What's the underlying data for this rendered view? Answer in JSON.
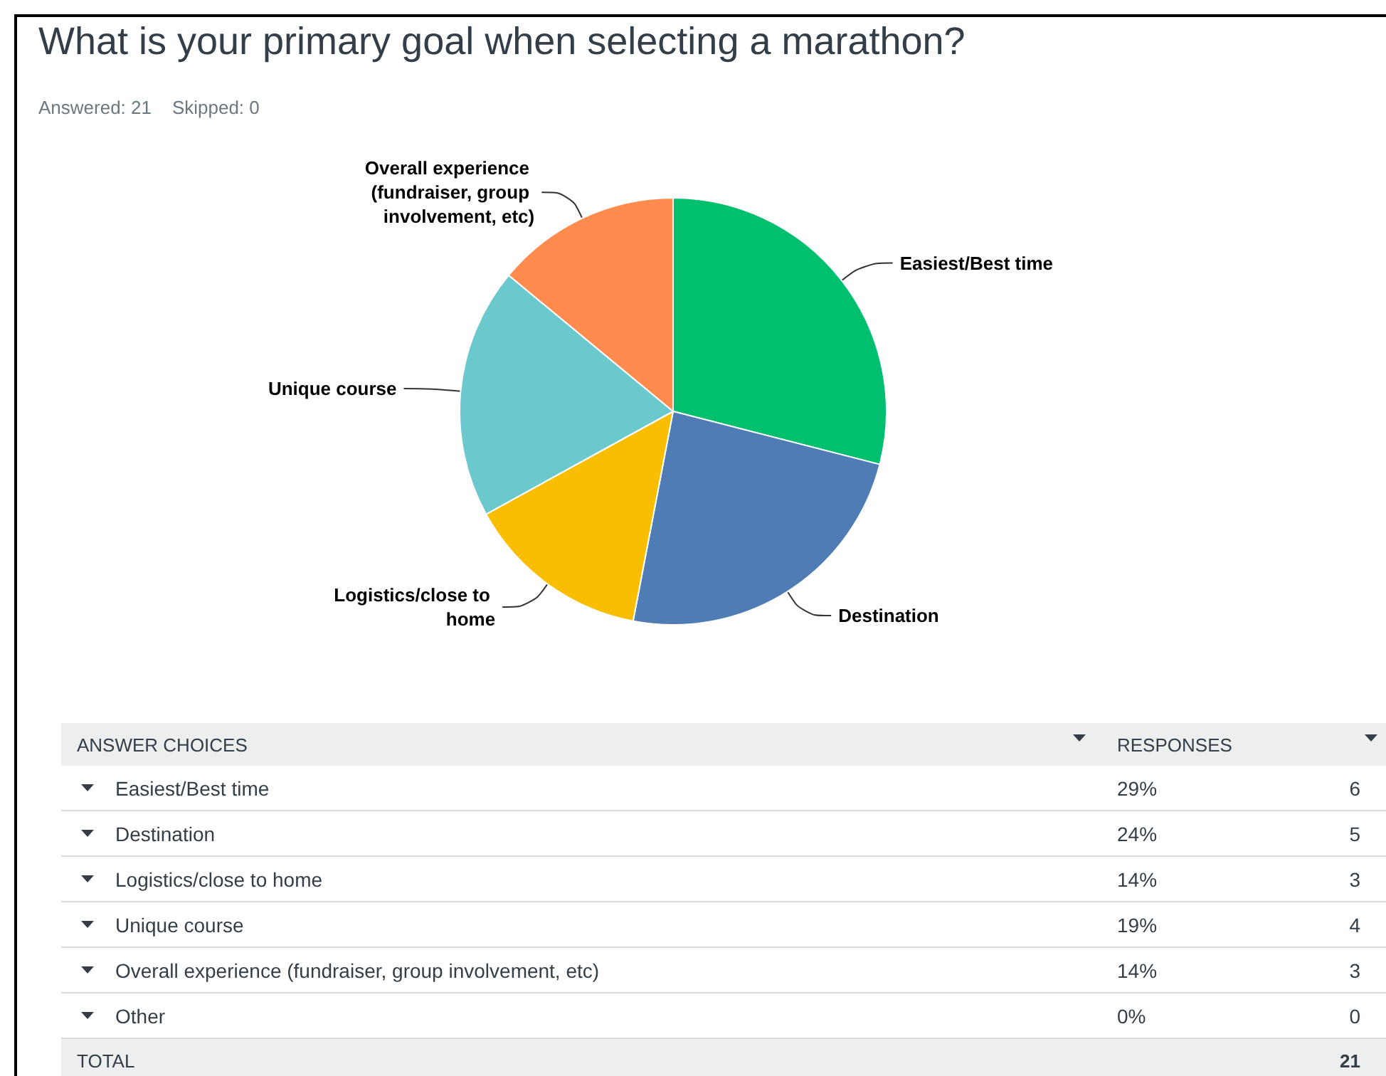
{
  "chart_data": {
    "type": "pie",
    "title": "What is your primary goal when selecting a marathon?",
    "subtitle": "Answered: 21    Skipped: 0",
    "categories": [
      "Easiest/Best time",
      "Destination",
      "Logistics/close to home",
      "Unique course",
      "Overall experience (fundraiser, group involvement, etc)",
      "Other"
    ],
    "values": [
      29,
      24,
      14,
      19,
      14,
      0
    ],
    "colors": [
      "#00bf6f",
      "#507cb6",
      "#f9be00",
      "#6bc8cd",
      "#ff8b4f",
      "#9da6a9"
    ],
    "totals": [
      "21"
    ],
    "annotations": [
      "ANSWER CHOICES",
      "RESPONSES",
      "TOTAL",
      "6",
      "5",
      "3",
      "4",
      "3",
      "0",
      "29%",
      "24%",
      "14%",
      "19%",
      "14%",
      "0%"
    ],
    "legend": "bottom"
  }
}
